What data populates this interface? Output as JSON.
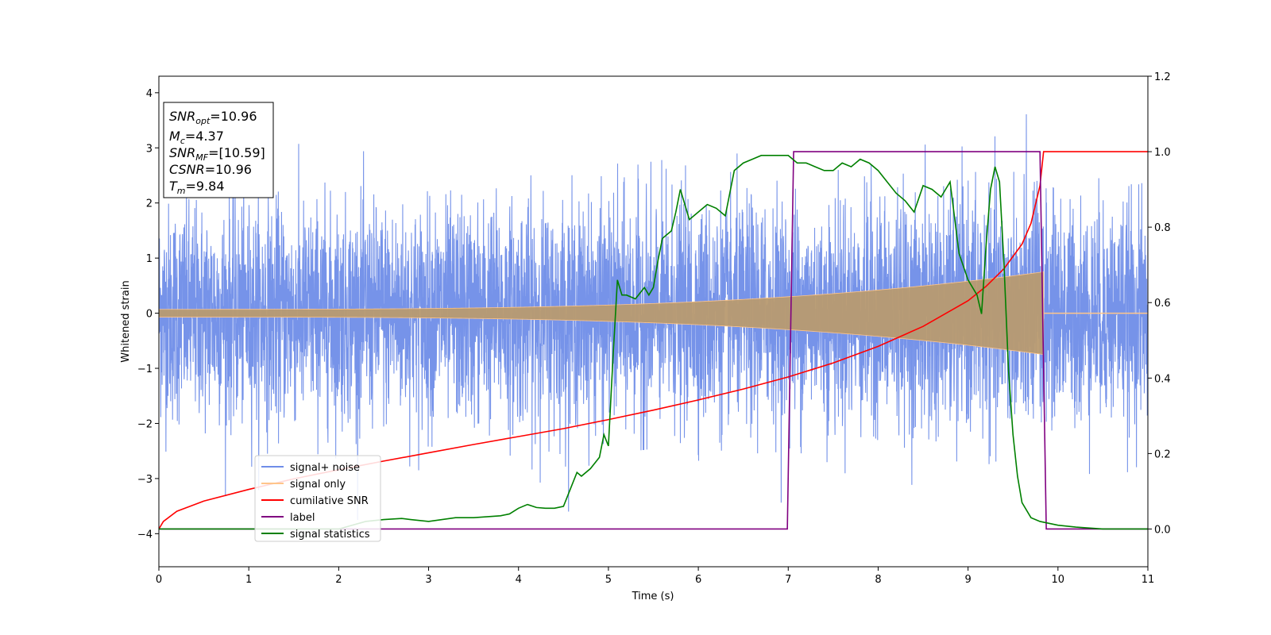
{
  "chart_data": {
    "type": "line",
    "title": "",
    "xlabel": "Time (s)",
    "ylabel": "Whitened strain",
    "xlim": [
      0,
      11
    ],
    "ylim_left": [
      -4.6,
      4.3
    ],
    "ylim_right": [
      -0.1,
      1.2
    ],
    "x_ticks": [
      0,
      1,
      2,
      3,
      4,
      5,
      6,
      7,
      8,
      9,
      10,
      11
    ],
    "x_tick_labels": [
      "0",
      "1",
      "2",
      "3",
      "4",
      "5",
      "6",
      "7",
      "8",
      "9",
      "10",
      "11"
    ],
    "y_left_ticks": [
      4,
      3,
      2,
      1,
      0,
      -1,
      -2,
      -3,
      -4
    ],
    "y_left_tick_labels": [
      "4",
      "3",
      "2",
      "1",
      "0",
      "−1",
      "−2",
      "−3",
      "−4"
    ],
    "y_right_ticks": [
      1.2,
      1.0,
      0.8,
      0.6,
      0.4,
      0.2,
      0.0
    ],
    "y_right_tick_labels": [
      "1.2",
      "1.0",
      "0.8",
      "0.6",
      "0.4",
      "0.2",
      "0.0"
    ],
    "grid": false,
    "legend_position": "lower-left",
    "annotation": {
      "lines": [
        {
          "main": "SNR",
          "sub": "opt",
          "rest": "=10.96"
        },
        {
          "main": "M",
          "sub": "c",
          "rest": "=4.37"
        },
        {
          "main": "SNR",
          "sub": "MF",
          "rest": "=[10.59]"
        },
        {
          "main": "CSNR",
          "sub": "",
          "rest": "=10.96"
        },
        {
          "main": "T",
          "sub": "m",
          "rest": "=9.84"
        }
      ]
    },
    "series": [
      {
        "name": "signal+ noise",
        "color": "#6f8de8",
        "axis": "left",
        "kind": "noise",
        "t_end": 11,
        "amplitude_range": [
          -4.15,
          3.9
        ]
      },
      {
        "name": "signal only",
        "color": "#ffc58a",
        "axis": "left",
        "kind": "chirp",
        "t_end": 9.84,
        "amplitude_start": 0.07,
        "amplitude_end": 0.75
      },
      {
        "name": "cumilative SNR",
        "color": "#ff0000",
        "axis": "right",
        "x": [
          0,
          0.05,
          0.2,
          0.5,
          1,
          1.5,
          2,
          2.5,
          3,
          3.5,
          4,
          4.5,
          5,
          5.5,
          6,
          6.5,
          7,
          7.5,
          8,
          8.5,
          9,
          9.2,
          9.4,
          9.6,
          9.7,
          9.8,
          9.84,
          11
        ],
        "y": [
          0.0,
          0.02,
          0.047,
          0.074,
          0.105,
          0.133,
          0.157,
          0.18,
          0.202,
          0.224,
          0.245,
          0.266,
          0.29,
          0.315,
          0.342,
          0.371,
          0.403,
          0.44,
          0.484,
          0.537,
          0.605,
          0.643,
          0.69,
          0.755,
          0.81,
          0.91,
          1.0,
          1.0
        ]
      },
      {
        "name": "label",
        "color": "#800080",
        "axis": "right",
        "x": [
          0,
          6.99,
          7.06,
          9.8,
          9.87,
          11
        ],
        "y": [
          0,
          0,
          1,
          1,
          0,
          0
        ]
      },
      {
        "name": "signal statistics",
        "color": "#008000",
        "axis": "right",
        "x": [
          0,
          0.5,
          1,
          1.5,
          2,
          2.3,
          2.5,
          2.7,
          2.8,
          3,
          3.3,
          3.5,
          3.8,
          3.9,
          4.0,
          4.1,
          4.2,
          4.3,
          4.4,
          4.5,
          4.55,
          4.65,
          4.7,
          4.8,
          4.9,
          4.95,
          5.0,
          5.05,
          5.1,
          5.15,
          5.2,
          5.3,
          5.4,
          5.45,
          5.5,
          5.55,
          5.6,
          5.65,
          5.7,
          5.75,
          5.8,
          5.9,
          6.0,
          6.1,
          6.2,
          6.3,
          6.4,
          6.5,
          6.6,
          6.7,
          6.8,
          6.9,
          7.0,
          7.1,
          7.2,
          7.3,
          7.4,
          7.5,
          7.6,
          7.7,
          7.8,
          7.9,
          8.0,
          8.1,
          8.2,
          8.3,
          8.4,
          8.5,
          8.6,
          8.7,
          8.8,
          8.9,
          9.0,
          9.1,
          9.15,
          9.2,
          9.25,
          9.3,
          9.35,
          9.4,
          9.45,
          9.5,
          9.55,
          9.6,
          9.7,
          9.8,
          9.9,
          10.0,
          10.2,
          10.5,
          11.0
        ],
        "y": [
          0.0,
          0.0,
          0.0,
          0.0,
          0.0,
          0.02,
          0.025,
          0.028,
          0.025,
          0.02,
          0.03,
          0.03,
          0.035,
          0.04,
          0.055,
          0.065,
          0.057,
          0.055,
          0.055,
          0.06,
          0.09,
          0.15,
          0.14,
          0.16,
          0.19,
          0.25,
          0.22,
          0.45,
          0.66,
          0.62,
          0.62,
          0.61,
          0.64,
          0.62,
          0.64,
          0.71,
          0.77,
          0.78,
          0.79,
          0.84,
          0.9,
          0.82,
          0.84,
          0.86,
          0.85,
          0.83,
          0.95,
          0.97,
          0.98,
          0.99,
          0.99,
          0.99,
          0.99,
          0.97,
          0.97,
          0.96,
          0.95,
          0.95,
          0.97,
          0.96,
          0.98,
          0.97,
          0.95,
          0.92,
          0.89,
          0.87,
          0.84,
          0.91,
          0.9,
          0.88,
          0.92,
          0.73,
          0.66,
          0.62,
          0.57,
          0.75,
          0.9,
          0.96,
          0.92,
          0.7,
          0.42,
          0.25,
          0.14,
          0.07,
          0.03,
          0.02,
          0.015,
          0.01,
          0.005,
          0.0,
          0.0
        ]
      }
    ]
  }
}
